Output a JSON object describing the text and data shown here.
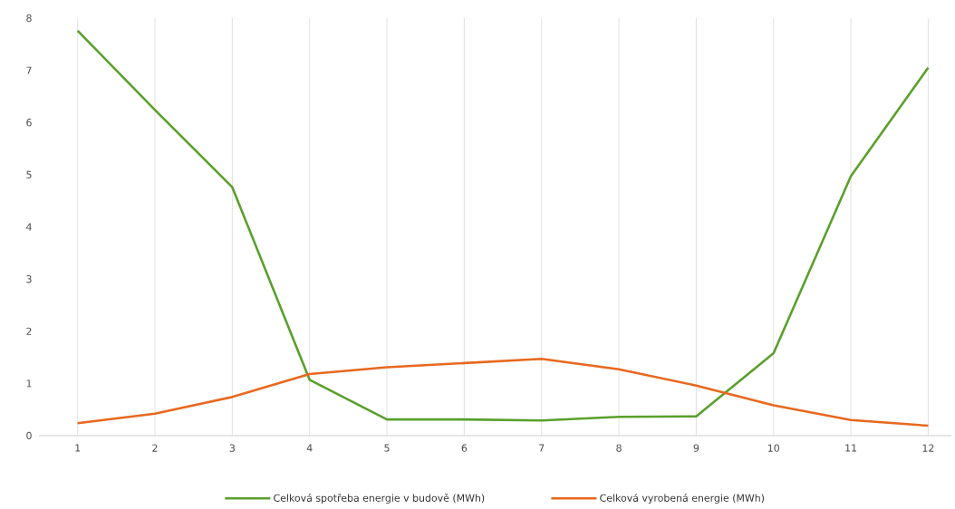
{
  "chart_data": {
    "type": "line",
    "categories": [
      "1",
      "2",
      "3",
      "4",
      "5",
      "6",
      "7",
      "8",
      "9",
      "10",
      "11",
      "12"
    ],
    "series": [
      {
        "name": "Celková spotřeba energie v budově (MWh)",
        "color": "#5aa02c",
        "values": [
          7.76,
          6.24,
          4.76,
          1.07,
          0.31,
          0.31,
          0.29,
          0.36,
          0.37,
          1.58,
          4.97,
          7.05
        ]
      },
      {
        "name": "Celková vyrobená energie (MWh)",
        "color": "#e8681e",
        "values": [
          0.24,
          0.42,
          0.74,
          1.18,
          1.31,
          1.39,
          1.47,
          1.27,
          0.96,
          0.58,
          0.3,
          0.19
        ]
      }
    ],
    "ylim": [
      0,
      8
    ],
    "yticks": [
      0,
      1,
      2,
      3,
      4,
      5,
      6,
      7,
      8
    ],
    "grid": "x",
    "legend": "bottom",
    "marker": "none",
    "line_style": "solid"
  }
}
